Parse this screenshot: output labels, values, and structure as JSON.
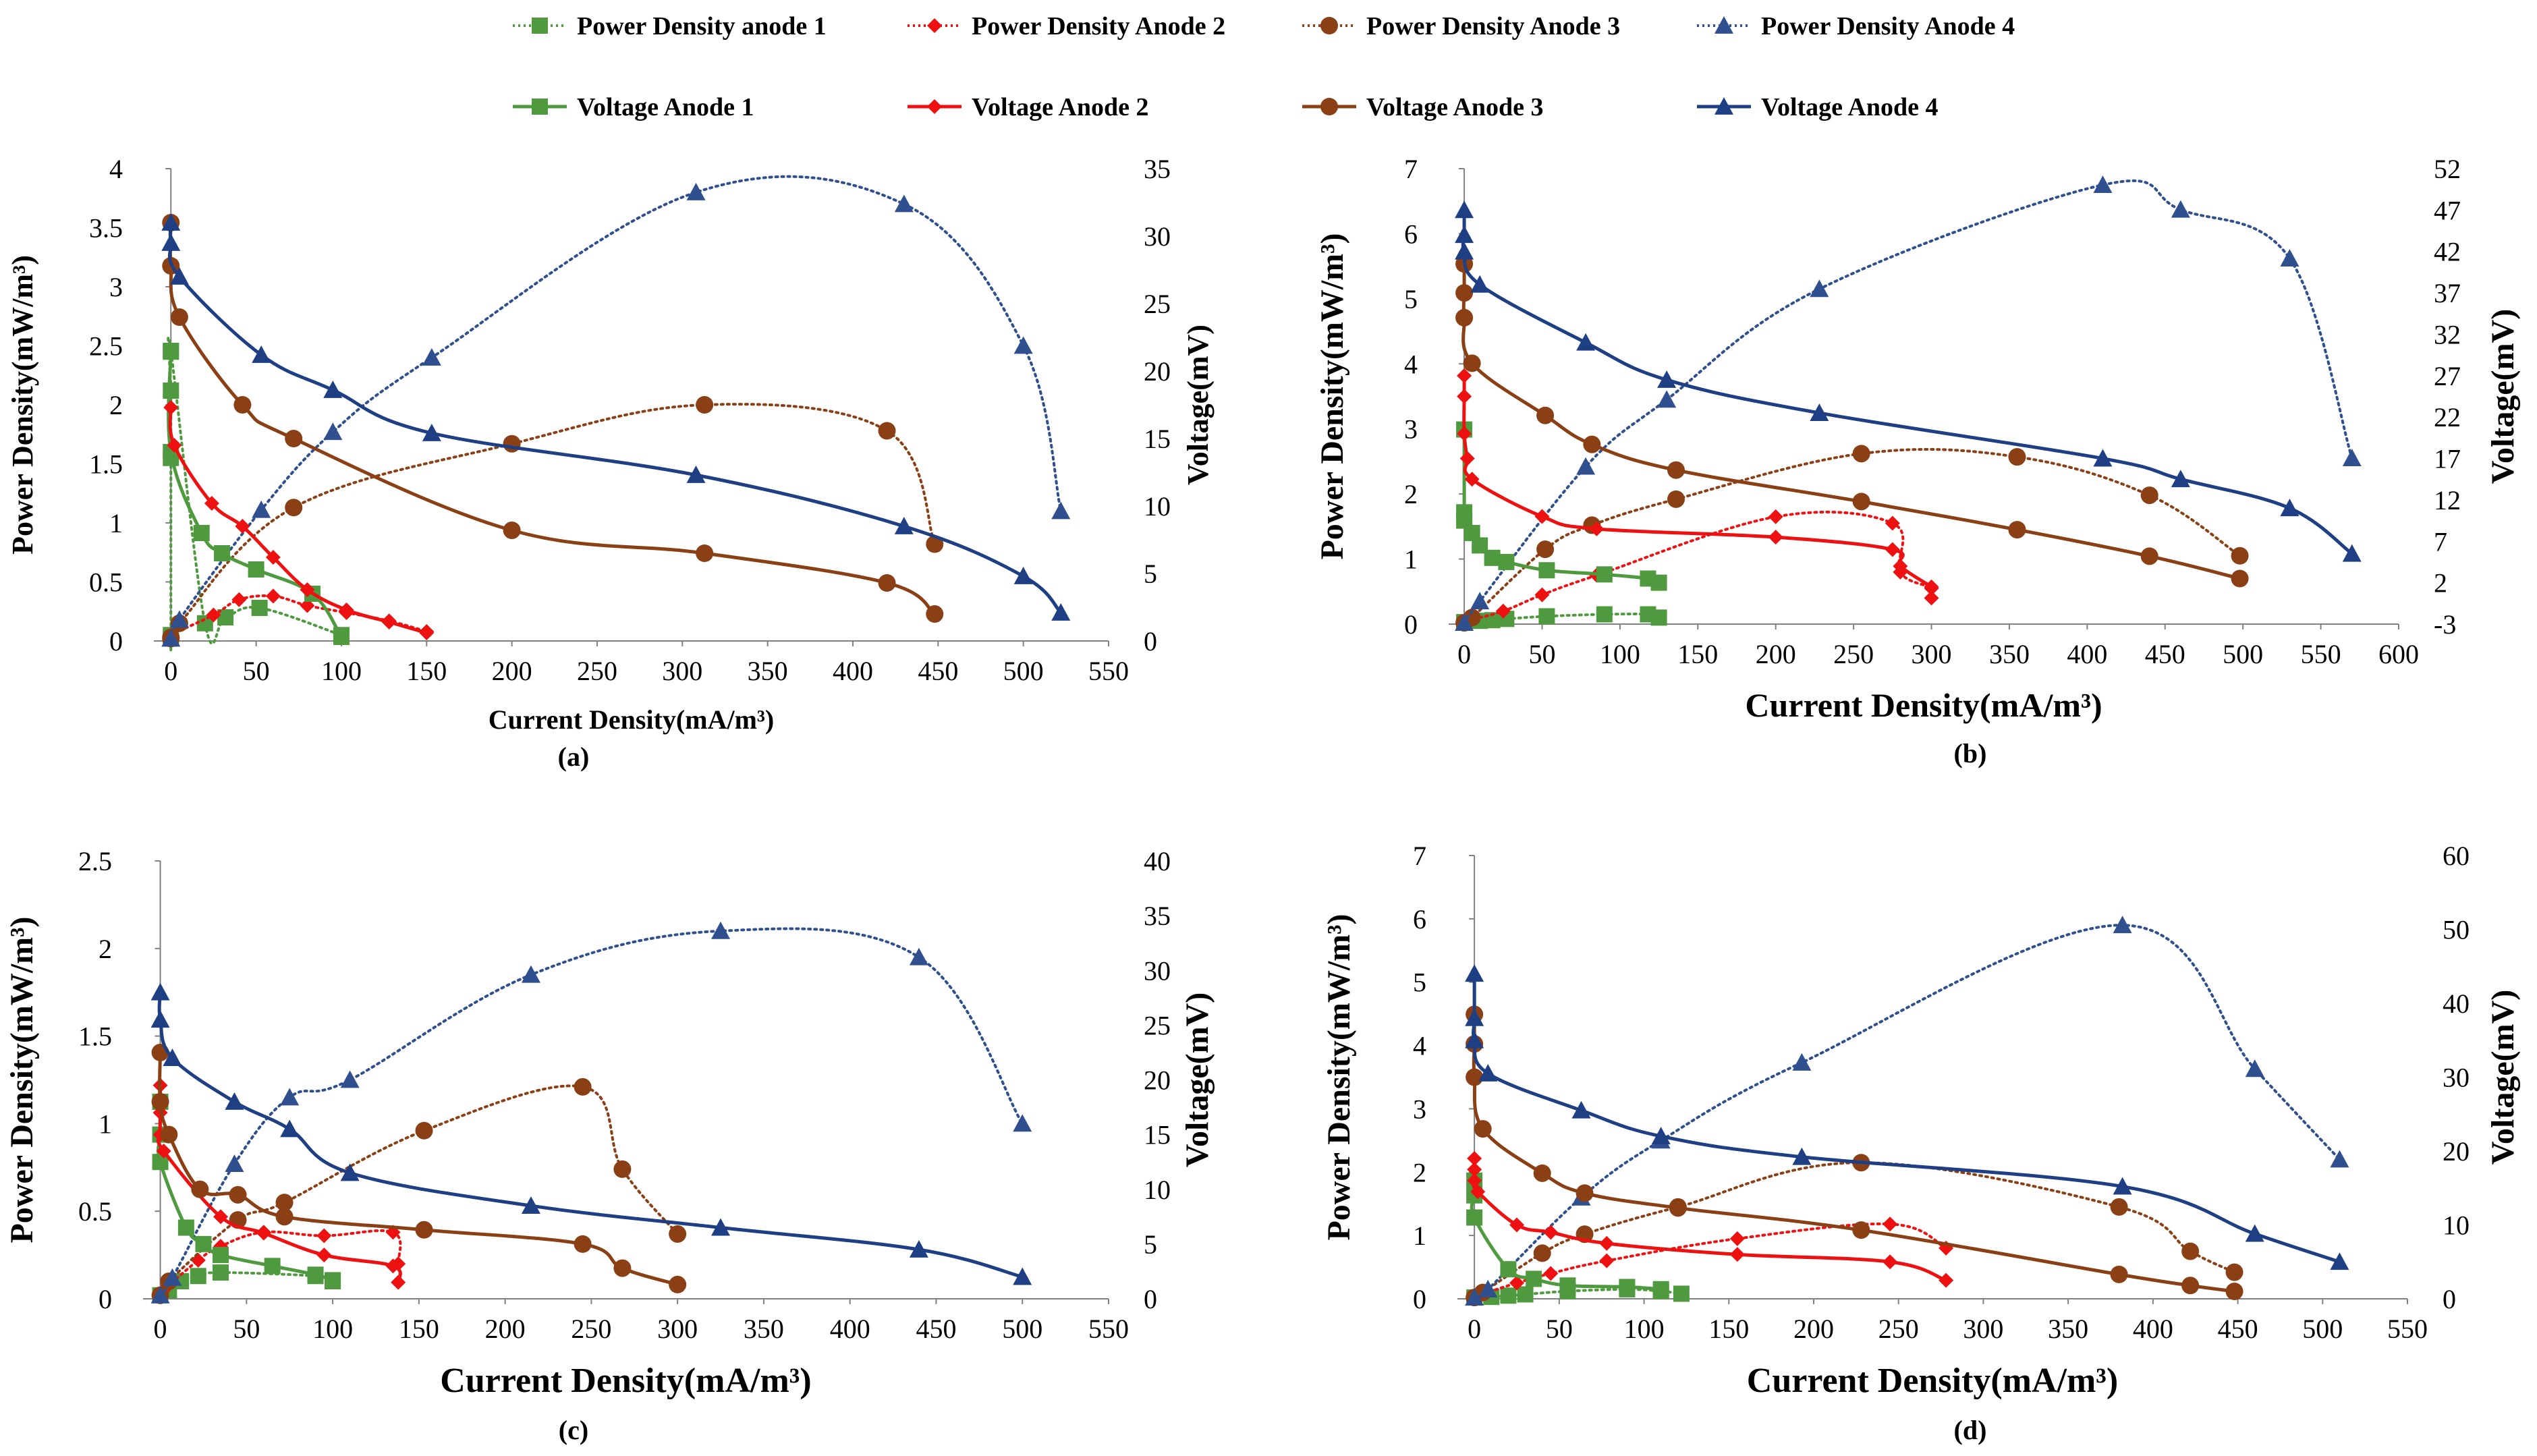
{
  "legend": [
    {
      "label": "Power Density anode 1",
      "color": "#4f9a3f",
      "dash": true,
      "marker": "square"
    },
    {
      "label": "Power Density Anode 2",
      "color": "#ee1111",
      "dash": true,
      "marker": "diamond"
    },
    {
      "label": "Power Density Anode 3",
      "color": "#8b3f14",
      "dash": true,
      "marker": "circle"
    },
    {
      "label": "Power Density Anode 4",
      "color": "#2f4f8f",
      "dash": true,
      "marker": "triangle"
    },
    {
      "label": "Voltage Anode 1",
      "color": "#4f9a3f",
      "dash": false,
      "marker": "square"
    },
    {
      "label": "Voltage Anode 2",
      "color": "#ee1111",
      "dash": false,
      "marker": "diamond"
    },
    {
      "label": "Voltage Anode 3",
      "color": "#8b3f14",
      "dash": false,
      "marker": "circle"
    },
    {
      "label": "Voltage  Anode 4",
      "color": "#1f3f85",
      "dash": false,
      "marker": "triangle"
    }
  ],
  "chart_data": [
    {
      "type": "line",
      "panel_label": "(a)",
      "xlabel": "Current Density(mA/m³)",
      "ylabel": "Power Density(mW/m³)",
      "y2label": "Voltage(mV)",
      "xlim": [
        -10,
        550
      ],
      "xticks": [
        0,
        50,
        100,
        150,
        200,
        250,
        300,
        350,
        400,
        450,
        500,
        550
      ],
      "ylim": [
        0,
        4
      ],
      "yticks": [
        0,
        0.5,
        1,
        1.5,
        2,
        2.5,
        3,
        3.5,
        4
      ],
      "y2lim": [
        0,
        35
      ],
      "y2ticks": [
        0,
        5,
        10,
        15,
        20,
        25,
        30,
        35
      ],
      "series": [
        {
          "name": "Power Density anode 1",
          "axis": "left",
          "x": [
            0,
            0,
            0,
            0,
            0,
            20,
            32,
            52,
            100
          ],
          "y": [
            0.02,
            0.05,
            1.55,
            2.12,
            2.45,
            0.15,
            0.2,
            0.28,
            0.05
          ]
        },
        {
          "name": "Power Density Anode 2",
          "axis": "left",
          "x": [
            0,
            0,
            25,
            40,
            60,
            80,
            103,
            128,
            150
          ],
          "y": [
            0.02,
            0.05,
            0.22,
            0.35,
            0.38,
            0.3,
            0.24,
            0.17,
            0.08
          ]
        },
        {
          "name": "Power Density Anode 3",
          "axis": "left",
          "x": [
            0,
            0,
            5,
            72,
            200,
            313,
            420,
            448
          ],
          "y": [
            0.02,
            0.03,
            0.15,
            1.13,
            1.67,
            2.0,
            1.78,
            0.82
          ]
        },
        {
          "name": "Power Density Anode 4",
          "axis": "left",
          "x": [
            0,
            5,
            53,
            95,
            153,
            308,
            430,
            500,
            522
          ],
          "y": [
            0.02,
            0.18,
            1.11,
            1.77,
            2.4,
            3.8,
            3.7,
            2.5,
            1.1
          ]
        },
        {
          "name": "Voltage Anode 1",
          "axis": "right",
          "x": [
            0,
            0,
            18,
            30,
            50,
            83,
            100
          ],
          "y": [
            21.5,
            14.0,
            8.0,
            6.5,
            5.3,
            3.5,
            0.3
          ]
        },
        {
          "name": "Voltage Anode 2",
          "axis": "right",
          "x": [
            0,
            2,
            24,
            42,
            60,
            80,
            103,
            128,
            150
          ],
          "y": [
            17.3,
            14.5,
            10.2,
            8.5,
            6.2,
            3.8,
            2.3,
            1.4,
            0.6
          ]
        },
        {
          "name": "Voltage Anode 3",
          "axis": "right",
          "x": [
            0,
            0,
            5,
            42,
            72,
            200,
            313,
            420,
            448
          ],
          "y": [
            31.0,
            27.8,
            24.0,
            17.5,
            15.0,
            8.2,
            6.5,
            4.3,
            2.0
          ]
        },
        {
          "name": "Voltage  Anode 4",
          "axis": "right",
          "x": [
            0,
            0,
            5,
            53,
            95,
            153,
            308,
            430,
            500,
            522
          ],
          "y": [
            31.0,
            29.5,
            27.0,
            21.2,
            18.6,
            15.4,
            12.3,
            8.5,
            4.8,
            2.1
          ]
        }
      ]
    },
    {
      "type": "line",
      "panel_label": "(b)",
      "xlabel": "Current Density(mA/m³)",
      "ylabel": "Power Density(mW/m³)",
      "y2label": "Voltage(mV)",
      "xlim": [
        -10,
        600
      ],
      "xticks": [
        0,
        50,
        100,
        150,
        200,
        250,
        300,
        350,
        400,
        450,
        500,
        550,
        600
      ],
      "ylim": [
        0,
        7
      ],
      "yticks": [
        0,
        1,
        2,
        3,
        4,
        5,
        6,
        7
      ],
      "y2lim": [
        -3,
        52
      ],
      "y2ticks": [
        -3,
        2,
        7,
        12,
        17,
        22,
        27,
        32,
        37,
        42,
        47,
        52
      ],
      "series": [
        {
          "name": "Power Density anode 1",
          "axis": "left",
          "x": [
            0,
            10,
            18,
            27,
            53,
            90,
            118,
            125
          ],
          "y": [
            0.03,
            0.05,
            0.06,
            0.08,
            0.12,
            0.15,
            0.15,
            0.1
          ]
        },
        {
          "name": "Power Density Anode 2",
          "axis": "left",
          "x": [
            0,
            2,
            25,
            50,
            85,
            200,
            275,
            280,
            300,
            300
          ],
          "y": [
            0.02,
            0.05,
            0.2,
            0.45,
            0.75,
            1.65,
            1.55,
            0.8,
            0.55,
            0.4
          ]
        },
        {
          "name": "Power Density Anode 3",
          "axis": "left",
          "x": [
            0,
            5,
            52,
            82,
            136,
            255,
            355,
            440,
            498
          ],
          "y": [
            0.02,
            0.1,
            1.15,
            1.52,
            1.92,
            2.62,
            2.57,
            1.98,
            1.05
          ]
        },
        {
          "name": "Power Density Anode 4",
          "axis": "left",
          "x": [
            0,
            10,
            78,
            130,
            228,
            410,
            460,
            530,
            570
          ],
          "y": [
            0.02,
            0.35,
            2.42,
            3.45,
            5.15,
            6.75,
            6.37,
            5.62,
            2.55
          ]
        },
        {
          "name": "Voltage Anode 1",
          "axis": "right",
          "x": [
            0,
            0,
            0,
            5,
            10,
            18,
            27,
            53,
            90,
            118,
            125
          ],
          "y": [
            20.5,
            10.5,
            9.5,
            8.0,
            6.5,
            5.0,
            4.5,
            3.5,
            3.0,
            2.5,
            2.0
          ]
        },
        {
          "name": "Voltage Anode 2",
          "axis": "right",
          "x": [
            0,
            0,
            0,
            2,
            5,
            50,
            85,
            200,
            275,
            280,
            300
          ],
          "y": [
            27.0,
            24.5,
            20.0,
            17.0,
            14.5,
            10.0,
            8.5,
            7.5,
            6.0,
            4.0,
            1.5
          ]
        },
        {
          "name": "Voltage Anode 3",
          "axis": "right",
          "x": [
            0,
            0,
            0,
            5,
            52,
            82,
            136,
            255,
            355,
            440,
            498
          ],
          "y": [
            40.5,
            37.0,
            34.0,
            28.5,
            22.2,
            18.7,
            15.6,
            11.8,
            8.4,
            5.2,
            2.5
          ]
        },
        {
          "name": "Voltage  Anode 4",
          "axis": "right",
          "x": [
            0,
            0,
            0,
            10,
            78,
            130,
            228,
            410,
            460,
            530,
            570
          ],
          "y": [
            47.0,
            44.0,
            42.0,
            38.0,
            31.0,
            26.5,
            22.5,
            17.0,
            14.5,
            11.0,
            5.5
          ]
        }
      ]
    },
    {
      "type": "line",
      "panel_label": "(c)",
      "xlabel": "Current Density(mA/m³)",
      "ylabel": "Power Density(mW/m³)",
      "y2label": "Voltage(mV)",
      "xlim": [
        -10,
        550
      ],
      "xticks": [
        0,
        50,
        100,
        150,
        200,
        250,
        300,
        350,
        400,
        450,
        500,
        550
      ],
      "ylim": [
        0,
        2.5
      ],
      "yticks": [
        0,
        0.5,
        1,
        1.5,
        2,
        2.5
      ],
      "y2lim": [
        0,
        40
      ],
      "y2ticks": [
        0,
        5,
        10,
        15,
        20,
        25,
        30,
        35,
        40
      ],
      "series": [
        {
          "name": "Power Density anode 1",
          "axis": "left",
          "x": [
            0,
            5,
            12,
            22,
            35,
            90,
            100
          ],
          "y": [
            0.02,
            0.05,
            0.1,
            0.13,
            0.15,
            0.13,
            0.1
          ]
        },
        {
          "name": "Power Density Anode 2",
          "axis": "left",
          "x": [
            0,
            2,
            22,
            35,
            60,
            95,
            135,
            138
          ],
          "y": [
            0.02,
            0.05,
            0.22,
            0.3,
            0.38,
            0.36,
            0.38,
            0.2
          ]
        },
        {
          "name": "Power Density Anode 3",
          "axis": "left",
          "x": [
            0,
            5,
            45,
            72,
            153,
            245,
            268,
            300
          ],
          "y": [
            0.02,
            0.1,
            0.45,
            0.55,
            0.96,
            1.21,
            0.74,
            0.37
          ]
        },
        {
          "name": "Power Density Anode 4",
          "axis": "left",
          "x": [
            0,
            7,
            43,
            75,
            110,
            215,
            325,
            440,
            500
          ],
          "y": [
            0.02,
            0.12,
            0.77,
            1.15,
            1.25,
            1.85,
            2.1,
            1.95,
            1.0
          ]
        },
        {
          "name": "Voltage Anode 1",
          "axis": "right",
          "x": [
            0,
            0,
            0,
            15,
            25,
            35,
            65,
            90,
            100
          ],
          "y": [
            18.0,
            15.0,
            12.5,
            6.5,
            5.0,
            4.0,
            3.0,
            2.2,
            1.7
          ]
        },
        {
          "name": "Voltage Anode 2",
          "axis": "right",
          "x": [
            0,
            0,
            0,
            2,
            35,
            60,
            95,
            135,
            138
          ],
          "y": [
            19.5,
            17.0,
            15.0,
            13.5,
            7.5,
            6.0,
            4.0,
            3.0,
            1.5
          ]
        },
        {
          "name": "Voltage Anode 3",
          "axis": "right",
          "x": [
            0,
            0,
            5,
            23,
            45,
            72,
            153,
            245,
            268,
            300
          ],
          "y": [
            22.5,
            18.0,
            15.0,
            10.0,
            9.5,
            7.5,
            6.3,
            5.0,
            2.8,
            1.3
          ]
        },
        {
          "name": "Voltage  Anode 4",
          "axis": "right",
          "x": [
            0,
            0,
            7,
            43,
            75,
            110,
            215,
            325,
            440,
            500
          ],
          "y": [
            28.0,
            25.5,
            22.0,
            18.0,
            15.5,
            11.5,
            8.5,
            6.5,
            4.5,
            2.0
          ]
        }
      ]
    },
    {
      "type": "line",
      "panel_label": "(d)",
      "xlabel": "Current Density(mA/m³)",
      "ylabel": "Power Density(mW/m³)",
      "y2label": "Voltage(mV)",
      "xlim": [
        -10,
        550
      ],
      "xticks": [
        0,
        50,
        100,
        150,
        200,
        250,
        300,
        350,
        400,
        450,
        500,
        550
      ],
      "ylim": [
        0,
        7
      ],
      "yticks": [
        0,
        1,
        2,
        3,
        4,
        5,
        6,
        7
      ],
      "y2lim": [
        0,
        60
      ],
      "y2ticks": [
        0,
        10,
        20,
        30,
        40,
        50,
        60
      ],
      "series": [
        {
          "name": "Power Density anode 1",
          "axis": "left",
          "x": [
            0,
            10,
            20,
            30,
            55,
            90,
            110,
            122
          ],
          "y": [
            0.02,
            0.03,
            0.05,
            0.07,
            0.12,
            0.15,
            0.12,
            0.08
          ]
        },
        {
          "name": "Power Density Anode 2",
          "axis": "left",
          "x": [
            0,
            2,
            25,
            45,
            78,
            155,
            245,
            278
          ],
          "y": [
            0.02,
            0.05,
            0.25,
            0.4,
            0.6,
            0.95,
            1.18,
            0.8
          ]
        },
        {
          "name": "Power Density Anode 3",
          "axis": "left",
          "x": [
            0,
            5,
            40,
            65,
            120,
            228,
            380,
            422,
            448
          ],
          "y": [
            0.02,
            0.1,
            0.72,
            1.02,
            1.45,
            2.15,
            1.45,
            0.75,
            0.42
          ]
        },
        {
          "name": "Power Density Anode 4",
          "axis": "left",
          "x": [
            0,
            8,
            63,
            110,
            193,
            382,
            460,
            510
          ],
          "y": [
            0.02,
            0.15,
            1.6,
            2.5,
            3.73,
            5.9,
            3.63,
            2.2
          ]
        },
        {
          "name": "Voltage Anode 1",
          "axis": "right",
          "x": [
            0,
            0,
            0,
            20,
            35,
            55,
            90,
            110
          ],
          "y": [
            16.0,
            14.0,
            11.0,
            4.0,
            2.7,
            1.8,
            1.6,
            1.3
          ]
        },
        {
          "name": "Voltage Anode 2",
          "axis": "right",
          "x": [
            0,
            0,
            0,
            2,
            25,
            45,
            78,
            155,
            245,
            278
          ],
          "y": [
            19.0,
            17.5,
            16.0,
            14.5,
            10.0,
            9.0,
            7.5,
            6.0,
            5.0,
            2.5
          ]
        },
        {
          "name": "Voltage Anode 3",
          "axis": "right",
          "x": [
            0,
            0,
            0,
            5,
            40,
            65,
            120,
            228,
            380,
            422,
            448
          ],
          "y": [
            38.5,
            34.5,
            30.0,
            23.0,
            17.0,
            14.3,
            12.3,
            9.3,
            3.3,
            1.8,
            1.0
          ]
        },
        {
          "name": "Voltage  Anode 4",
          "axis": "right",
          "x": [
            0,
            0,
            0,
            8,
            63,
            110,
            193,
            382,
            460,
            510
          ],
          "y": [
            44.0,
            38.0,
            35.0,
            30.5,
            25.5,
            22.0,
            19.2,
            15.2,
            8.8,
            5.0
          ]
        }
      ]
    }
  ]
}
